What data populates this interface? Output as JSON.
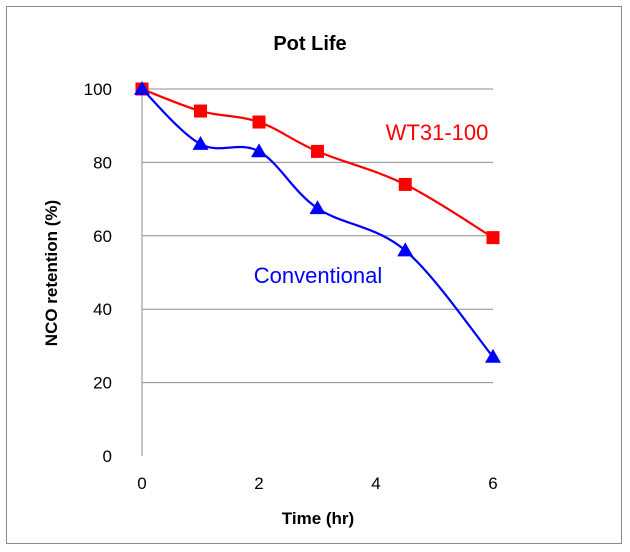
{
  "chart_data": {
    "type": "line",
    "title": "Pot Life",
    "xlabel": "Time (hr)",
    "ylabel": "NCO retention (%)",
    "xlim": [
      0,
      6
    ],
    "ylim": [
      0,
      100
    ],
    "xticks": [
      0,
      2,
      4,
      6
    ],
    "yticks": [
      0,
      20,
      40,
      60,
      80,
      100
    ],
    "grid": "horizontal",
    "series": [
      {
        "name": "WT31-100",
        "color": "#ff0000",
        "marker": "square",
        "x": [
          0,
          1,
          2,
          3,
          4.5,
          6
        ],
        "y": [
          100,
          94,
          91,
          83,
          74,
          59.5
        ]
      },
      {
        "name": "Conventional",
        "color": "#0000ff",
        "marker": "triangle",
        "x": [
          0,
          1,
          2,
          3,
          4.5,
          6
        ],
        "y": [
          100,
          85,
          83,
          67.5,
          56,
          27
        ]
      }
    ]
  }
}
